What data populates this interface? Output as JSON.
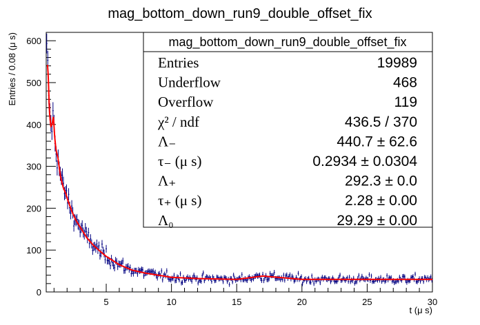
{
  "chart_data": {
    "type": "histogram",
    "title": "mag_bottom_down_run9_double_offset_fix",
    "xlabel": "t (μ s)",
    "ylabel": "Entries / 0.08 (μ s)",
    "xlim": [
      0.4,
      30
    ],
    "ylim": [
      0,
      620
    ],
    "x_ticks": [
      5,
      10,
      15,
      20,
      25,
      30
    ],
    "y_ticks": [
      0,
      100,
      200,
      300,
      400,
      500,
      600
    ],
    "bin_width": 0.08,
    "series": [
      {
        "role": "data-histogram-with-errors",
        "color": "#000080",
        "description_points": [
          [
            0.45,
            565
          ],
          [
            0.55,
            520
          ],
          [
            0.65,
            430
          ],
          [
            0.75,
            395
          ],
          [
            0.85,
            400
          ],
          [
            0.95,
            420
          ],
          [
            1.05,
            370
          ],
          [
            1.15,
            340
          ],
          [
            1.3,
            320
          ],
          [
            1.5,
            275
          ],
          [
            1.7,
            250
          ],
          [
            1.9,
            235
          ],
          [
            2.1,
            215
          ],
          [
            2.4,
            190
          ],
          [
            2.7,
            170
          ],
          [
            3.0,
            155
          ],
          [
            3.5,
            130
          ],
          [
            4.0,
            112
          ],
          [
            4.5,
            98
          ],
          [
            5.0,
            85
          ],
          [
            5.5,
            75
          ],
          [
            6.0,
            65
          ],
          [
            7.0,
            52
          ],
          [
            8.0,
            45
          ],
          [
            9.0,
            40
          ],
          [
            10.0,
            35
          ],
          [
            12.0,
            32
          ],
          [
            15.0,
            30
          ],
          [
            17.0,
            38
          ],
          [
            20.0,
            30
          ],
          [
            25.0,
            30
          ],
          [
            30.0,
            30
          ]
        ]
      },
      {
        "role": "fit",
        "color": "#ff0000",
        "model": "Lm*exp(-t/tm)/tm + Lp*exp(-t/tp)/tp*0.08 + L0",
        "params": {
          "Lm": 440.7,
          "tm": 0.2934,
          "Lp": 292.3,
          "tp": 2.28,
          "L0": 29.29
        }
      }
    ],
    "stats_box": {
      "header": "mag_bottom_down_run9_double_offset_fix",
      "rows": [
        {
          "label": "Entries",
          "value": "19989"
        },
        {
          "label": "Underflow",
          "value": "468"
        },
        {
          "label": "Overflow",
          "value": "119"
        },
        {
          "label": "χ² / ndf",
          "value": "436.5 / 370"
        },
        {
          "label": "Λ₋",
          "value": "440.7 ± 62.6"
        },
        {
          "label": "τ₋ (μ s)",
          "value": "0.2934 ± 0.0304"
        },
        {
          "label": "Λ₊",
          "value": "292.3 ± 0.0"
        },
        {
          "label": "τ₊ (μ s)",
          "value": "2.28 ± 0.00"
        },
        {
          "label": "Λ₀",
          "value": "29.29 ± 0.00"
        }
      ]
    }
  }
}
